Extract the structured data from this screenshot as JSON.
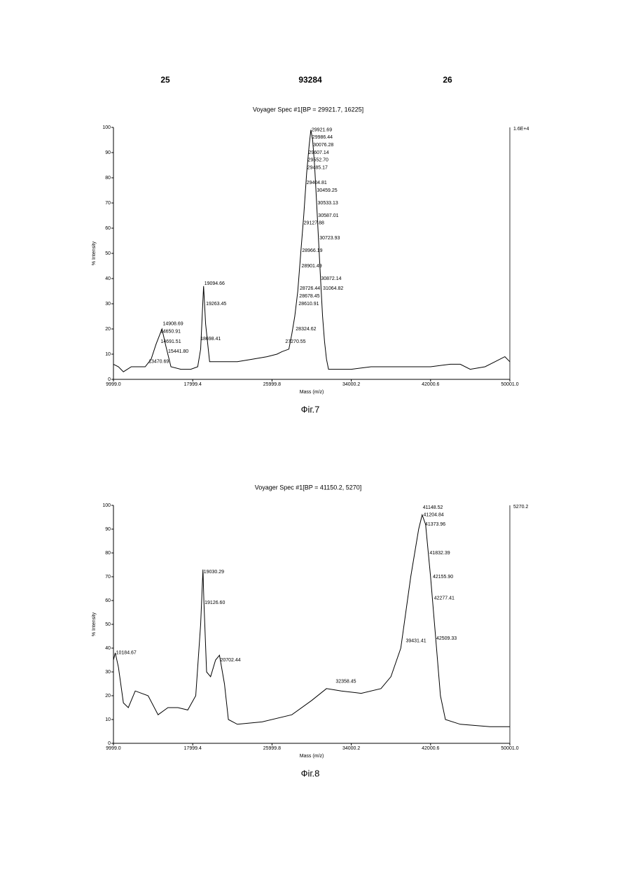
{
  "header": {
    "left": "25",
    "center": "93284",
    "right": "26"
  },
  "chart_data": [
    {
      "type": "line",
      "title": "Voyager Spec #1[BP = 29921.7, 16225]",
      "caption": "Фіг.7",
      "xlabel": "Mass (m/z)",
      "ylabel": "% Intensity",
      "right_label": "1.6E+4",
      "color": "#000000",
      "xlim": [
        9999.0,
        50001.0
      ],
      "ylim": [
        0,
        100
      ],
      "xticks": [
        {
          "value": 9999.0,
          "label": "9999.0"
        },
        17999.4,
        25999.8,
        34000.2,
        42000.6,
        {
          "value": 50001.0,
          "label": "50001.0"
        }
      ],
      "yticks": [
        0,
        10,
        20,
        30,
        40,
        50,
        60,
        70,
        80,
        90,
        100
      ],
      "x": [
        9999,
        10500,
        11000,
        11800,
        12500,
        13200,
        13800,
        14300,
        14900,
        15300,
        15800,
        16800,
        17800,
        18500,
        18800,
        19094,
        19300,
        19700,
        21000,
        22500,
        24000,
        25500,
        26500,
        27000,
        27700,
        28000,
        28300,
        28600,
        28900,
        29200,
        29500,
        29750,
        29921,
        30100,
        30300,
        30500,
        30700,
        30900,
        31100,
        31300,
        31500,
        31700,
        33000,
        34000,
        36000,
        38000,
        40000,
        42000,
        44000,
        45000,
        46000,
        47500,
        48500,
        49500,
        50001
      ],
      "values": [
        6,
        5,
        3,
        5,
        5,
        5,
        8,
        14,
        20,
        13,
        5,
        4,
        4,
        5,
        12,
        37,
        22,
        7,
        7,
        7,
        8,
        9,
        10,
        11,
        12,
        18,
        25,
        35,
        50,
        65,
        82,
        93,
        99,
        95,
        85,
        70,
        55,
        40,
        25,
        15,
        8,
        4,
        4,
        4,
        5,
        5,
        5,
        5,
        6,
        6,
        4,
        5,
        7,
        9,
        7
      ],
      "annotations": [
        {
          "x": 29921.69,
          "y": 99,
          "label": "29921.69"
        },
        {
          "x": 29986.44,
          "y": 96,
          "label": "29986.44"
        },
        {
          "x": 30076.28,
          "y": 93,
          "label": "30076.28"
        },
        {
          "x": 29607.14,
          "y": 90,
          "label": "29607.14"
        },
        {
          "x": 29552.7,
          "y": 87,
          "label": "29552.70"
        },
        {
          "x": 29485.17,
          "y": 84,
          "label": "29485.17"
        },
        {
          "x": 29404.81,
          "y": 78,
          "label": "29404.81"
        },
        {
          "x": 30459.25,
          "y": 75,
          "label": "30459.25"
        },
        {
          "x": 30533.13,
          "y": 70,
          "label": "30533.13"
        },
        {
          "x": 30587.01,
          "y": 65,
          "label": "30587.01"
        },
        {
          "x": 29127.88,
          "y": 62,
          "label": "29127.88"
        },
        {
          "x": 30723.93,
          "y": 56,
          "label": "30723.93"
        },
        {
          "x": 28966.19,
          "y": 51,
          "label": "28966.19"
        },
        {
          "x": 28901.49,
          "y": 45,
          "label": "28901.49"
        },
        {
          "x": 30872.14,
          "y": 40,
          "label": "30872.14"
        },
        {
          "x": 28726.44,
          "y": 36,
          "label": "28726.44"
        },
        {
          "x": 31064.82,
          "y": 36,
          "label": "31064.82"
        },
        {
          "x": 28678.45,
          "y": 33,
          "label": "28678.45"
        },
        {
          "x": 28610.91,
          "y": 30,
          "label": "28610.91"
        },
        {
          "x": 28324.62,
          "y": 20,
          "label": "28324.62"
        },
        {
          "x": 27270.55,
          "y": 15,
          "label": "27270.55"
        },
        {
          "x": 19094.66,
          "y": 38,
          "label": "19094.66"
        },
        {
          "x": 19263.45,
          "y": 30,
          "label": "19263.45"
        },
        {
          "x": 18698.41,
          "y": 16,
          "label": "18698.41"
        },
        {
          "x": 14908.69,
          "y": 22,
          "label": "14908.69"
        },
        {
          "x": 14650.91,
          "y": 19,
          "label": "14650.91"
        },
        {
          "x": 14691.51,
          "y": 15,
          "label": "14691.51"
        },
        {
          "x": 15441.8,
          "y": 11,
          "label": "15441.80"
        },
        {
          "x": 13470.69,
          "y": 7,
          "label": "13470.69"
        }
      ]
    },
    {
      "type": "line",
      "title": "Voyager Spec #1[BP = 41150.2, 5270]",
      "caption": "Фіг.8",
      "xlabel": "Mass (m/z)",
      "ylabel": "% Intensity",
      "right_label": "5270.2",
      "color": "#000000",
      "xlim": [
        9999.0,
        50001.0
      ],
      "ylim": [
        0,
        100
      ],
      "xticks": [
        {
          "value": 9999.0,
          "label": "9999.0"
        },
        17999.4,
        25999.8,
        34000.2,
        42000.6,
        {
          "value": 50001.0,
          "label": "50001.0"
        }
      ],
      "yticks": [
        0,
        10,
        20,
        30,
        40,
        50,
        60,
        70,
        80,
        90,
        100
      ],
      "x": [
        9999,
        10184,
        10500,
        11000,
        11500,
        12200,
        13500,
        14500,
        15500,
        16500,
        17500,
        18300,
        18800,
        19030,
        19126,
        19400,
        19800,
        20300,
        20700,
        21200,
        21600,
        22500,
        25000,
        28000,
        30000,
        31500,
        33000,
        35000,
        37000,
        38000,
        39000,
        40000,
        40800,
        41150,
        41500,
        42000,
        42500,
        43000,
        43500,
        45000,
        48000,
        50001
      ],
      "values": [
        35,
        38,
        32,
        17,
        15,
        22,
        20,
        12,
        15,
        15,
        14,
        20,
        50,
        73,
        60,
        30,
        28,
        35,
        37,
        25,
        10,
        8,
        9,
        12,
        18,
        23,
        22,
        21,
        23,
        28,
        40,
        70,
        90,
        96,
        92,
        70,
        45,
        20,
        10,
        8,
        7,
        7
      ],
      "annotations": [
        {
          "x": 41148.52,
          "y": 99,
          "label": "41148.52"
        },
        {
          "x": 41204.84,
          "y": 96,
          "label": "41204.84"
        },
        {
          "x": 41373.96,
          "y": 92,
          "label": "41373.96"
        },
        {
          "x": 41832.39,
          "y": 80,
          "label": "41832.39"
        },
        {
          "x": 42155.9,
          "y": 70,
          "label": "42155.90"
        },
        {
          "x": 42277.41,
          "y": 61,
          "label": "42277.41"
        },
        {
          "x": 42509.33,
          "y": 44,
          "label": "42509.33"
        },
        {
          "x": 39431.41,
          "y": 43,
          "label": "39431.41"
        },
        {
          "x": 32358.45,
          "y": 26,
          "label": "32358.45"
        },
        {
          "x": 19030.29,
          "y": 72,
          "label": "19030.29"
        },
        {
          "x": 19126.6,
          "y": 59,
          "label": "19126.60"
        },
        {
          "x": 20702.44,
          "y": 35,
          "label": "20702.44"
        },
        {
          "x": 10184.67,
          "y": 38,
          "label": "10184.67"
        }
      ]
    }
  ]
}
